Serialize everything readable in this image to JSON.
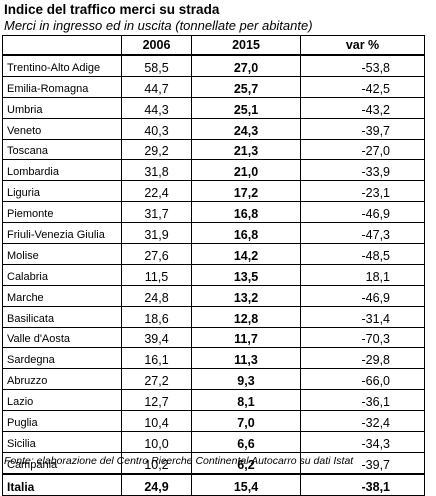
{
  "title": "Indice del traffico merci su strada",
  "subtitle": "Merci in ingresso ed in uscita (tonnellate per abitante)",
  "table": {
    "headers": [
      "",
      "2006",
      "2015",
      "var %"
    ],
    "rows": [
      {
        "region": "Trentino-Alto Adige",
        "v2006": "58,5",
        "v2015": "27,0",
        "var": "-53,8"
      },
      {
        "region": "Emilia-Romagna",
        "v2006": "44,7",
        "v2015": "25,7",
        "var": "-42,5"
      },
      {
        "region": "Umbria",
        "v2006": "44,3",
        "v2015": "25,1",
        "var": "-43,2"
      },
      {
        "region": "Veneto",
        "v2006": "40,3",
        "v2015": "24,3",
        "var": "-39,7"
      },
      {
        "region": "Toscana",
        "v2006": "29,2",
        "v2015": "21,3",
        "var": "-27,0"
      },
      {
        "region": "Lombardia",
        "v2006": "31,8",
        "v2015": "21,0",
        "var": "-33,9"
      },
      {
        "region": "Liguria",
        "v2006": "22,4",
        "v2015": "17,2",
        "var": "-23,1"
      },
      {
        "region": "Piemonte",
        "v2006": "31,7",
        "v2015": "16,8",
        "var": "-46,9"
      },
      {
        "region": "Friuli-Venezia Giulia",
        "v2006": "31,9",
        "v2015": "16,8",
        "var": "-47,3"
      },
      {
        "region": "Molise",
        "v2006": "27,6",
        "v2015": "14,2",
        "var": "-48,5"
      },
      {
        "region": "Calabria",
        "v2006": "11,5",
        "v2015": "13,5",
        "var": "18,1"
      },
      {
        "region": "Marche",
        "v2006": "24,8",
        "v2015": "13,2",
        "var": "-46,9"
      },
      {
        "region": "Basilicata",
        "v2006": "18,6",
        "v2015": "12,8",
        "var": "-31,4"
      },
      {
        "region": "Valle d'Aosta",
        "v2006": "39,4",
        "v2015": "11,7",
        "var": "-70,3"
      },
      {
        "region": "Sardegna",
        "v2006": "16,1",
        "v2015": "11,3",
        "var": "-29,8"
      },
      {
        "region": "Abruzzo",
        "v2006": "27,2",
        "v2015": "9,3",
        "var": "-66,0"
      },
      {
        "region": "Lazio",
        "v2006": "12,7",
        "v2015": "8,1",
        "var": "-36,1"
      },
      {
        "region": "Puglia",
        "v2006": "10,4",
        "v2015": "7,0",
        "var": "-32,4"
      },
      {
        "region": "Sicilia",
        "v2006": "10,0",
        "v2015": "6,6",
        "var": "-34,3"
      },
      {
        "region": "Campania",
        "v2006": "10,2",
        "v2015": "6,2",
        "var": "-39,7"
      }
    ],
    "total": {
      "region": "Italia",
      "v2006": "24,9",
      "v2015": "15,4",
      "var": "-38,1"
    }
  },
  "source": "Fonte: elaborazione del Centro Ricerche Continental Autocarro su dati Istat"
}
